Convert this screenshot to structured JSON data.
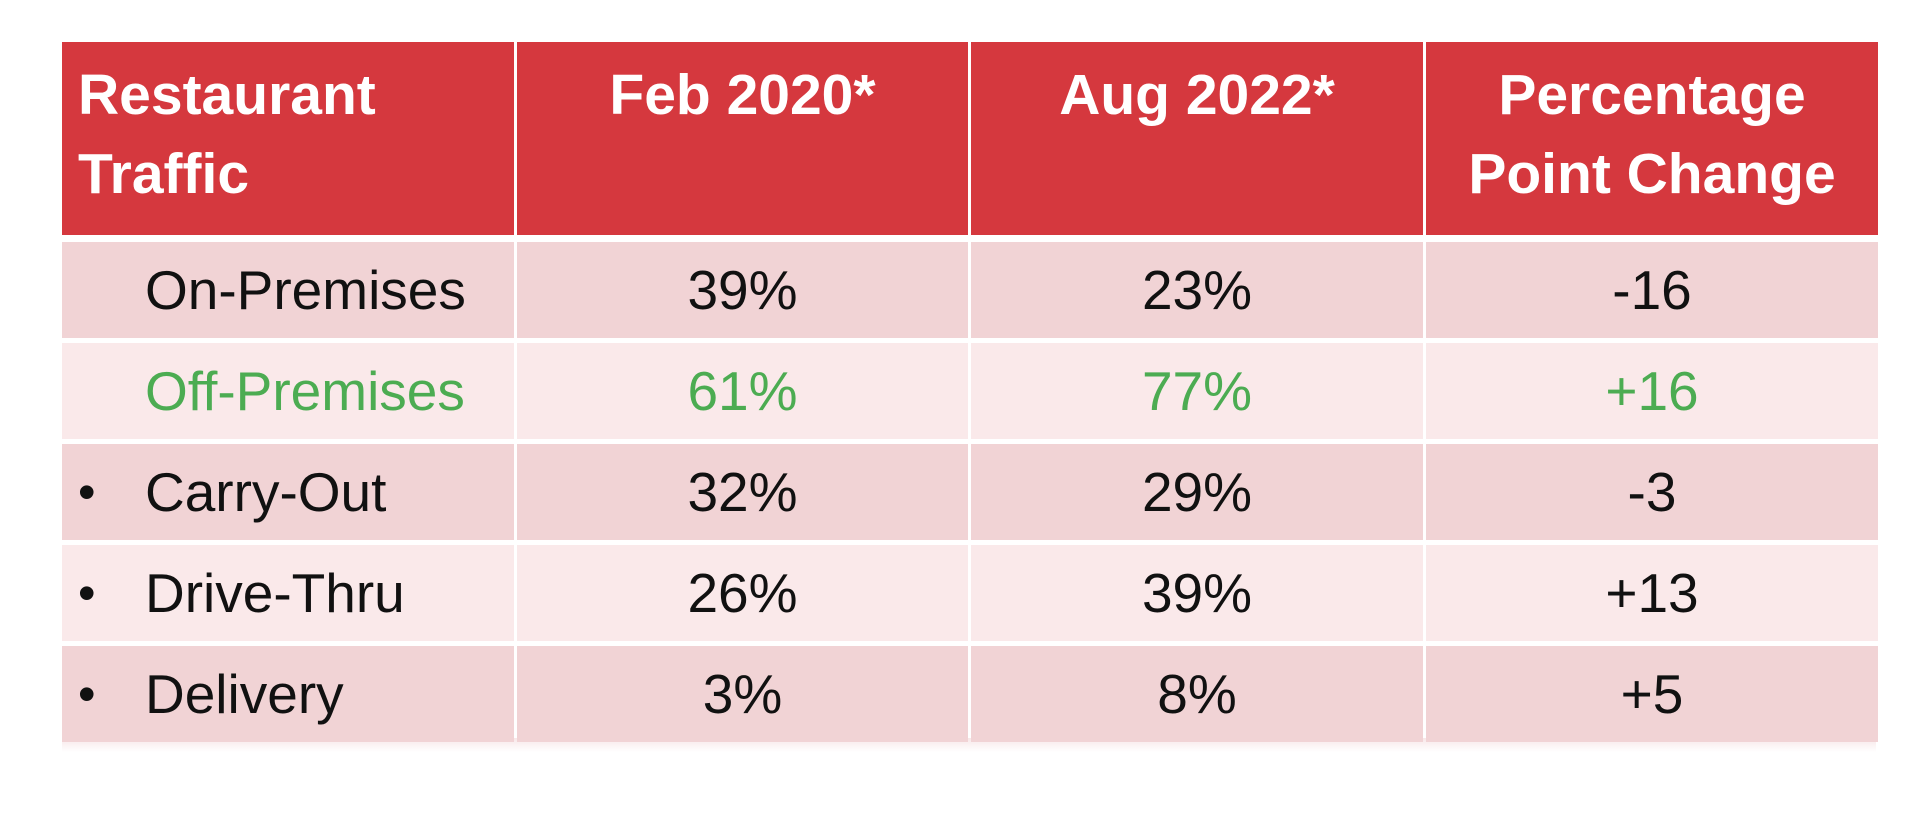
{
  "colors": {
    "header_bg": "#d5383e",
    "header_text": "#ffffff",
    "row_dark_pink": "#f1d3d5",
    "row_light_pink": "#fae9ea",
    "body_text": "#111111",
    "highlight_green": "#4cac52",
    "page_bg": "#ffffff"
  },
  "chart_data": {
    "type": "table",
    "title": "Restaurant Traffic",
    "columns": [
      {
        "label": "Restaurant Traffic"
      },
      {
        "label": "Feb 2020*"
      },
      {
        "label": "Aug 2022*"
      },
      {
        "label": "Percentage Point Change"
      }
    ],
    "rows": [
      {
        "bullet": "",
        "label": "On-Premises",
        "feb_2020": "39%",
        "aug_2022": "23%",
        "change": "-16",
        "highlight": false
      },
      {
        "bullet": "",
        "label": "Off-Premises",
        "feb_2020": "61%",
        "aug_2022": "77%",
        "change": "+16",
        "highlight": true
      },
      {
        "bullet": "•",
        "label": "Carry-Out",
        "feb_2020": "32%",
        "aug_2022": "29%",
        "change": "-3",
        "highlight": false
      },
      {
        "bullet": "•",
        "label": "Drive-Thru",
        "feb_2020": "26%",
        "aug_2022": "39%",
        "change": "+13",
        "highlight": false
      },
      {
        "bullet": "•",
        "label": "Delivery",
        "feb_2020": "3%",
        "aug_2022": "8%",
        "change": "+5",
        "highlight": false
      }
    ]
  }
}
